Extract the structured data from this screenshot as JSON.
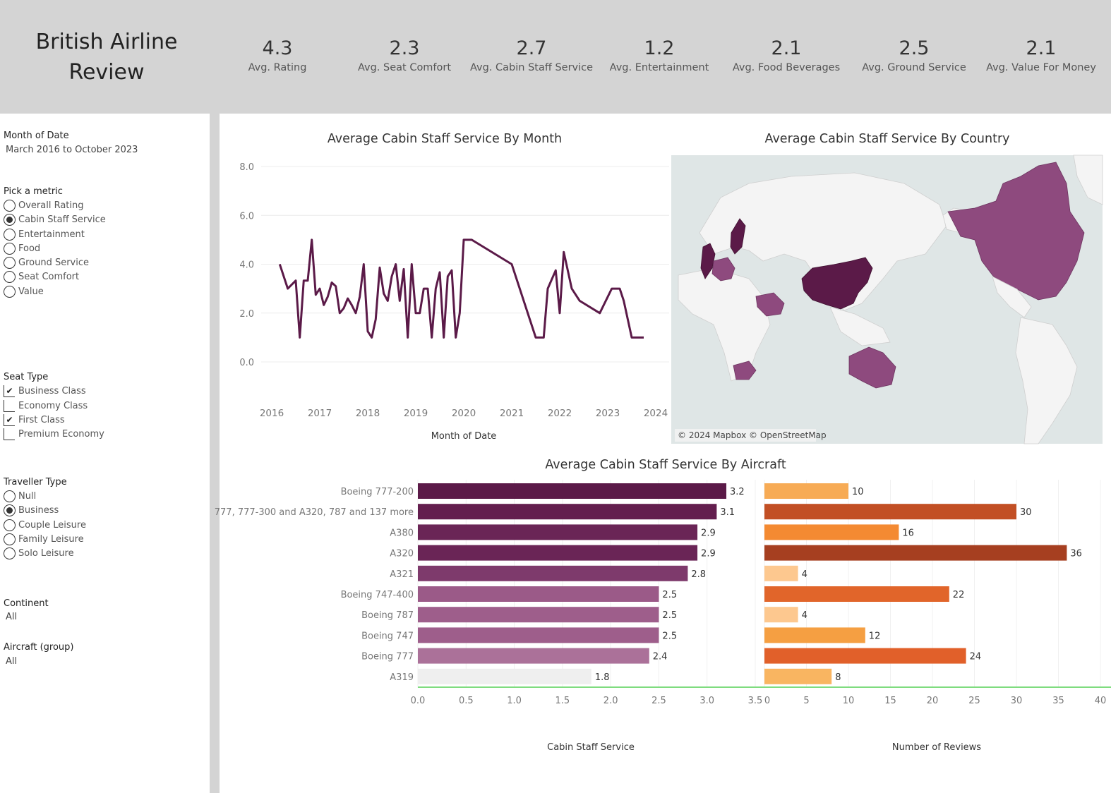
{
  "header": {
    "title_line1": "British Airline",
    "title_line2": "Review",
    "kpis": [
      {
        "value": "4.3",
        "label": "Avg. Rating"
      },
      {
        "value": "2.3",
        "label": "Avg. Seat Comfort"
      },
      {
        "value": "2.7",
        "label": "Avg. Cabin Staff Service"
      },
      {
        "value": "1.2",
        "label": "Avg. Entertainment"
      },
      {
        "value": "2.1",
        "label": "Avg. Food Beverages"
      },
      {
        "value": "2.5",
        "label": "Avg. Ground Service"
      },
      {
        "value": "2.1",
        "label": "Avg. Value For Money"
      }
    ]
  },
  "filters": {
    "month": {
      "title": "Month of Date",
      "value": "March 2016 to October 2023"
    },
    "metric": {
      "title": "Pick a metric",
      "options": [
        "Overall Rating",
        "Cabin Staff Service",
        "Entertainment",
        "Food",
        "Ground Service",
        "Seat Comfort",
        "Value"
      ],
      "selected": 1
    },
    "seat": {
      "title": "Seat Type",
      "options": [
        "Business Class",
        "Economy Class",
        "First Class",
        "Premium Economy"
      ],
      "checked": [
        true,
        false,
        true,
        false
      ],
      "check_mark": "✔"
    },
    "traveller": {
      "title": "Traveller Type",
      "options": [
        "Null",
        "Business",
        "Couple Leisure",
        "Family Leisure",
        "Solo Leisure"
      ],
      "selected": 1
    },
    "continent": {
      "title": "Continent",
      "value": "All"
    },
    "aircraft": {
      "title": "Aircraft (group)",
      "value": "All"
    }
  },
  "colors": {
    "line": "#5b1a48",
    "map_highlight": "#8e4a7e",
    "map_dark": "#5b1a48",
    "map_water": "#dfe6e6",
    "map_land": "#f4f4f4",
    "header_bg": "#d4d4d4"
  },
  "map": {
    "title": "Average Cabin Staff Service By Country",
    "attribution": "© 2024 Mapbox © OpenStreetMap"
  },
  "chart_data": [
    {
      "type": "line",
      "title": "Average Cabin Staff Service By Month",
      "xlabel": "Month of Date",
      "ylabel": "",
      "ylim": [
        -1,
        8.5
      ],
      "xlim": [
        2016,
        2024.3
      ],
      "x_ticks": [
        "2016",
        "2017",
        "2018",
        "2019",
        "2020",
        "2021",
        "2022",
        "2023",
        "2024"
      ],
      "y_ticks": [
        "0.0",
        "2.0",
        "4.0",
        "6.0",
        "8.0"
      ],
      "grid": true,
      "x": [
        "2016-03",
        "2016-05",
        "2016-07",
        "2016-08",
        "2016-09",
        "2016-10",
        "2016-11",
        "2016-12",
        "2017-01",
        "2017-02",
        "2017-03",
        "2017-04",
        "2017-05",
        "2017-06",
        "2017-07",
        "2017-08",
        "2017-09",
        "2017-10",
        "2017-11",
        "2017-12",
        "2018-01",
        "2018-02",
        "2018-03",
        "2018-04",
        "2018-05",
        "2018-06",
        "2018-07",
        "2018-08",
        "2018-09",
        "2018-10",
        "2018-11",
        "2018-12",
        "2019-01",
        "2019-02",
        "2019-03",
        "2019-04",
        "2019-05",
        "2019-06",
        "2019-07",
        "2019-08",
        "2019-09",
        "2019-10",
        "2019-11",
        "2019-12",
        "2020-01",
        "2020-02",
        "2020-03",
        "2021-01",
        "2021-07",
        "2021-09",
        "2021-10",
        "2021-12",
        "2022-01",
        "2022-02",
        "2022-04",
        "2022-06",
        "2022-11",
        "2023-02",
        "2023-04",
        "2023-05",
        "2023-07",
        "2023-08",
        "2023-09",
        "2023-10"
      ],
      "values": [
        4.0,
        3.0,
        3.33,
        1.0,
        3.33,
        3.33,
        5.0,
        2.75,
        3.0,
        2.33,
        2.67,
        3.25,
        3.1,
        2.0,
        2.2,
        2.6,
        2.33,
        2.0,
        2.67,
        4.0,
        1.25,
        1.0,
        1.75,
        3.86,
        2.8,
        2.5,
        3.5,
        4.0,
        2.5,
        3.8,
        1.0,
        4.0,
        2.0,
        2.0,
        3.0,
        3.0,
        1.0,
        3.0,
        3.67,
        1.0,
        3.5,
        3.75,
        1.0,
        2.0,
        5.0,
        5.0,
        5.0,
        4.0,
        1.0,
        1.0,
        3.0,
        3.75,
        2.0,
        4.5,
        3.0,
        2.5,
        2.0,
        3.0,
        3.0,
        2.5,
        1.0,
        1.0,
        1.0,
        1.0
      ]
    },
    {
      "type": "bar",
      "title": "Average Cabin Staff Service By Aircraft",
      "xlabel": "Cabin Staff Service",
      "categories": [
        "Boeing 777-200",
        "777, 777-300 and A320, 787 and 137 more",
        "A380",
        "A320",
        "A321",
        "Boeing 747-400",
        "Boeing 787",
        "Boeing 747",
        "Boeing 777",
        "A319"
      ],
      "values": [
        3.2,
        3.1,
        2.9,
        2.9,
        2.8,
        2.5,
        2.5,
        2.5,
        2.4,
        1.8
      ],
      "value_labels": [
        "3.2",
        "3.1",
        "2.9",
        "2.9",
        "2.8",
        "2.5",
        "2.5",
        "2.5",
        "2.4",
        "1.8"
      ],
      "colors": [
        "#5b1a48",
        "#631e4e",
        "#6a2556",
        "#6a2556",
        "#7e3a6c",
        "#9b5a88",
        "#9e5e8b",
        "#9e5e8b",
        "#ab7199",
        "#efefef"
      ],
      "xlim": [
        0,
        3.5
      ],
      "x_ticks": [
        "0.0",
        "0.5",
        "1.0",
        "1.5",
        "2.0",
        "2.5",
        "3.0",
        "3.5"
      ]
    },
    {
      "type": "bar",
      "title": "",
      "xlabel": "Number of Reviews",
      "categories": [
        "Boeing 777-200",
        "777, 777-300 and A320, 787 and 137 more",
        "A380",
        "A320",
        "A321",
        "Boeing 747-400",
        "Boeing 787",
        "Boeing 747",
        "Boeing 777",
        "A319"
      ],
      "values": [
        10,
        30,
        16,
        36,
        4,
        22,
        4,
        12,
        24,
        8
      ],
      "value_labels": [
        "10",
        "30",
        "16",
        "36",
        "4",
        "22",
        "4",
        "12",
        "24",
        "8"
      ],
      "colors": [
        "#f7ab55",
        "#c24f24",
        "#f48a32",
        "#a63f20",
        "#fdc88f",
        "#e1652a",
        "#fdc88f",
        "#f59f42",
        "#e1602a",
        "#f9b561"
      ],
      "xlim": [
        0,
        40
      ],
      "x_ticks": [
        "0",
        "5",
        "10",
        "15",
        "20",
        "25",
        "30",
        "35",
        "40"
      ]
    }
  ]
}
